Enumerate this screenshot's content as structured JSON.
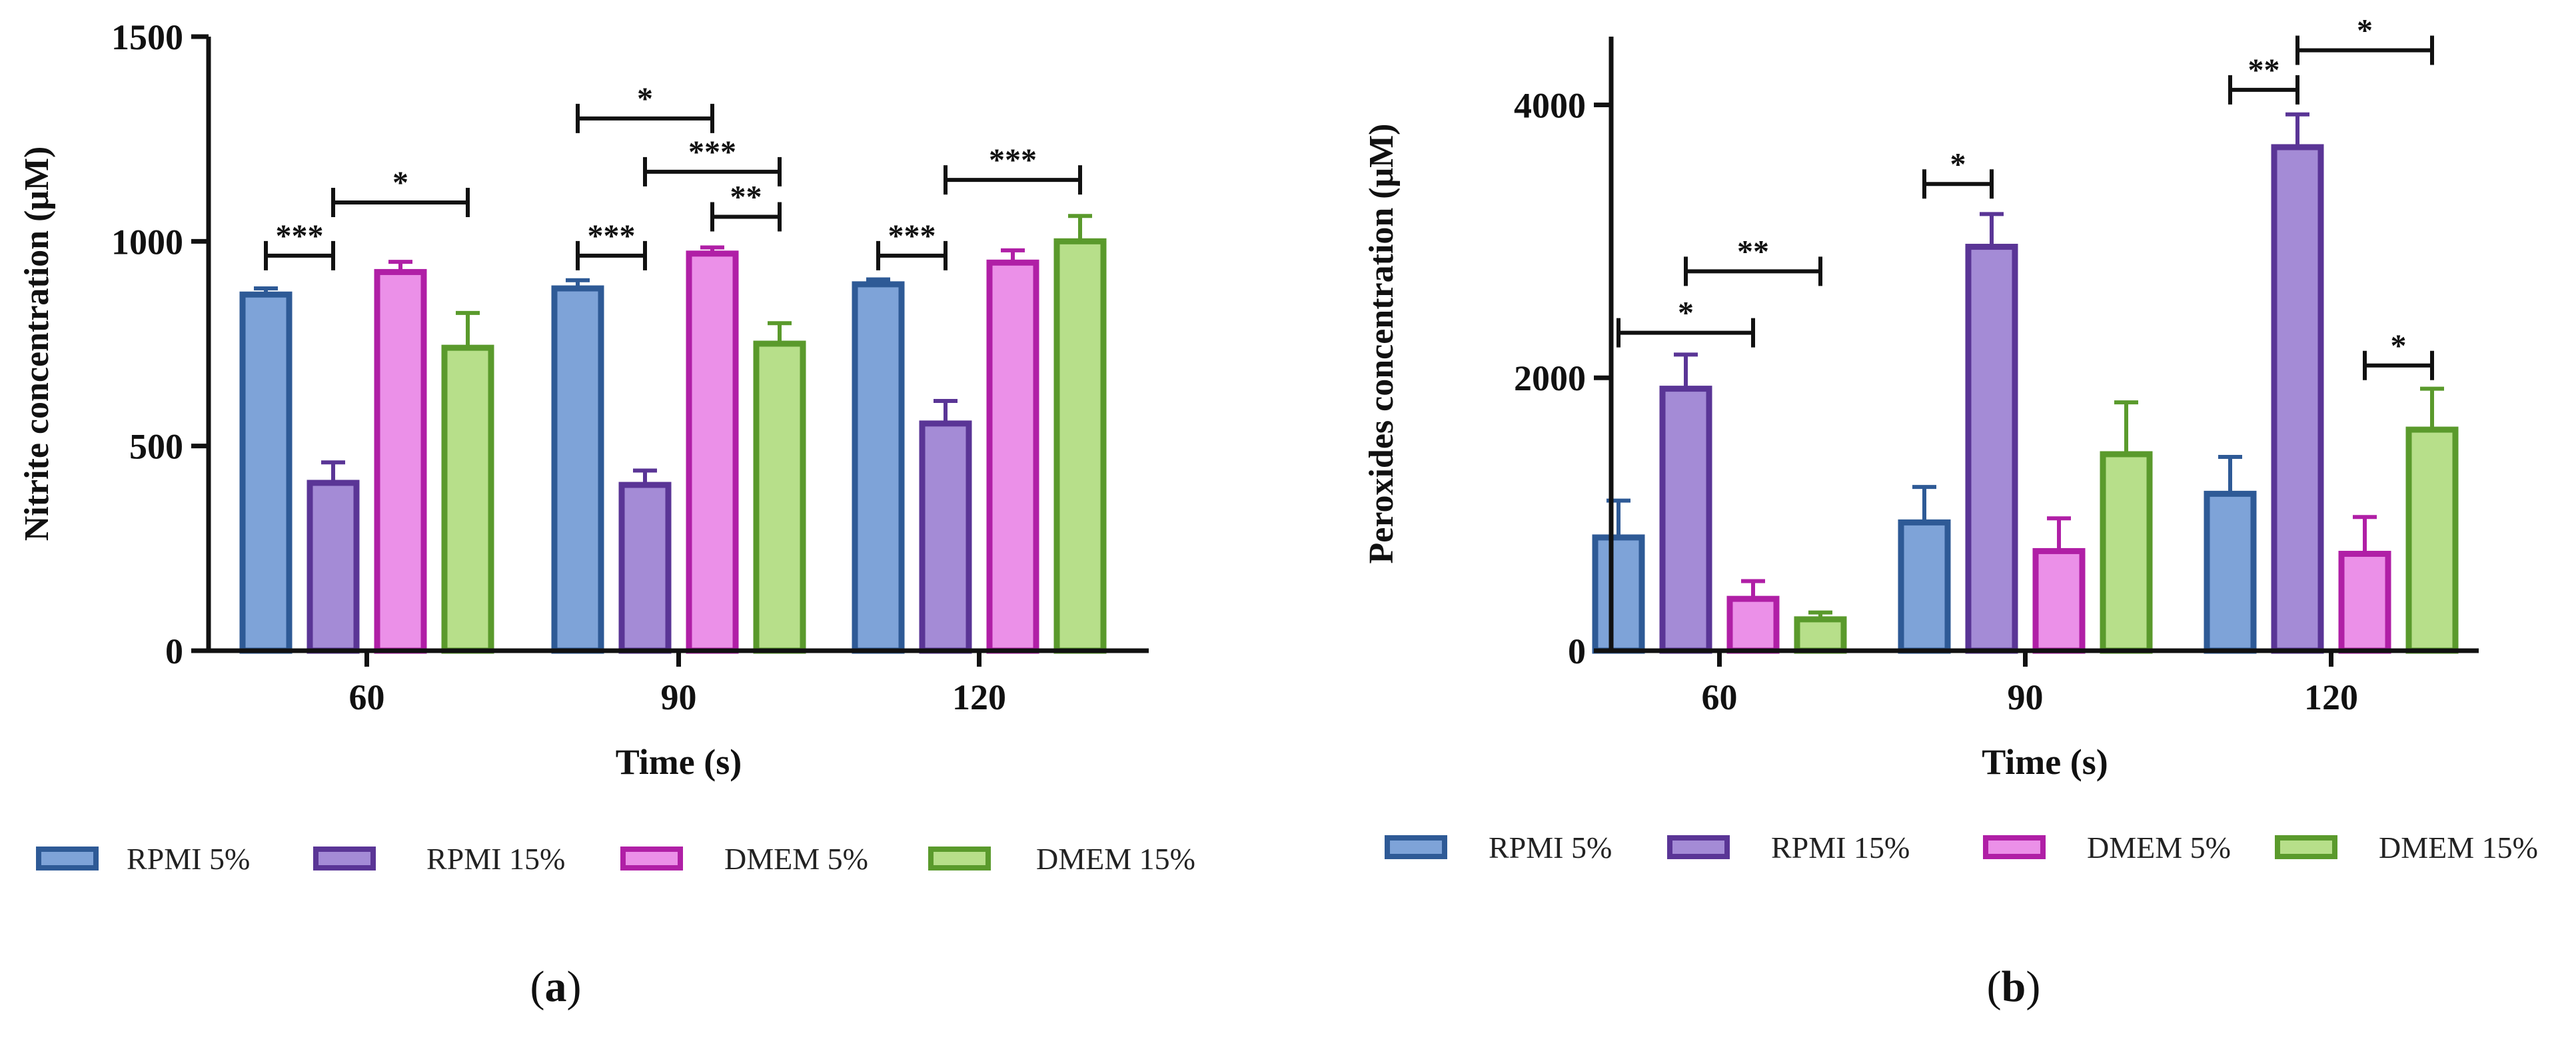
{
  "chart_data": [
    {
      "panel": "a",
      "panel_label_prefix": "(",
      "panel_label_letter": "a",
      "panel_label_suffix": ")",
      "type": "bar",
      "title": "",
      "xlabel": "Time (s)",
      "ylabel": "Nitrite concentration (μM)",
      "categories": [
        "60",
        "90",
        "120"
      ],
      "ylim": [
        0,
        1500
      ],
      "yticks": [
        0,
        500,
        1000,
        1500
      ],
      "series": [
        {
          "name": "RPMI 5%",
          "values": [
            870,
            885,
            895
          ],
          "errors": [
            15,
            20,
            12
          ],
          "fill": "#7ea3d8",
          "stroke": "#2e5a96"
        },
        {
          "name": "RPMI 15%",
          "values": [
            410,
            405,
            555
          ],
          "errors": [
            50,
            35,
            55
          ],
          "fill": "#a48bd6",
          "stroke": "#5a3596"
        },
        {
          "name": "DMEM 5%",
          "values": [
            925,
            970,
            948
          ],
          "errors": [
            25,
            15,
            30
          ],
          "fill": "#eb90e8",
          "stroke": "#b01fa6"
        },
        {
          "name": "DMEM 15%",
          "values": [
            740,
            750,
            1000
          ],
          "errors": [
            85,
            50,
            62
          ],
          "fill": "#b7df8a",
          "stroke": "#5a9a2c"
        }
      ],
      "significance": [
        {
          "group": 0,
          "from": 0,
          "to": 1,
          "y": 965,
          "label": "***"
        },
        {
          "group": 0,
          "from": 1,
          "to": 3,
          "y": 1095,
          "label": "*"
        },
        {
          "group": 1,
          "from": 0,
          "to": 2,
          "y": 1300,
          "label": "*"
        },
        {
          "group": 1,
          "from": 1,
          "to": 3,
          "y": 1170,
          "label": "***"
        },
        {
          "group": 1,
          "from": 2,
          "to": 3,
          "y": 1060,
          "label": "**"
        },
        {
          "group": 1,
          "from": 0,
          "to": 1,
          "y": 965,
          "label": "***"
        },
        {
          "group": 2,
          "from": 0,
          "to": 1,
          "y": 965,
          "label": "***"
        },
        {
          "group": 2,
          "from": 1,
          "to": 3,
          "y": 1150,
          "label": "***"
        }
      ]
    },
    {
      "panel": "b",
      "panel_label_prefix": "(",
      "panel_label_letter": "b",
      "panel_label_suffix": ")",
      "type": "bar",
      "title": "",
      "xlabel": "Time (s)",
      "ylabel": "Peroxides concentration (μM)",
      "categories": [
        "60",
        "90",
        "120"
      ],
      "ylim": [
        0,
        4500
      ],
      "yticks": [
        0,
        2000,
        4000
      ],
      "series": [
        {
          "name": "RPMI 5%",
          "values": [
            830,
            940,
            1150
          ],
          "errors": [
            270,
            260,
            270
          ],
          "fill": "#7ea3d8",
          "stroke": "#2e5a96"
        },
        {
          "name": "RPMI 15%",
          "values": [
            1920,
            2960,
            3690
          ],
          "errors": [
            250,
            240,
            240
          ],
          "fill": "#a48bd6",
          "stroke": "#5a3596"
        },
        {
          "name": "DMEM 5%",
          "values": [
            380,
            730,
            710
          ],
          "errors": [
            130,
            240,
            270
          ],
          "fill": "#eb90e8",
          "stroke": "#b01fa6"
        },
        {
          "name": "DMEM 15%",
          "values": [
            230,
            1440,
            1620
          ],
          "errors": [
            50,
            380,
            300
          ],
          "fill": "#b7df8a",
          "stroke": "#5a9a2c"
        }
      ],
      "significance": [
        {
          "group": 0,
          "from": 0,
          "to": 2,
          "y": 2330,
          "label": "*"
        },
        {
          "group": 0,
          "from": 1,
          "to": 3,
          "y": 2780,
          "label": "**"
        },
        {
          "group": 1,
          "from": 0,
          "to": 1,
          "y": 3420,
          "label": "*"
        },
        {
          "group": 2,
          "from": 0,
          "to": 1,
          "y": 4110,
          "label": "**"
        },
        {
          "group": 2,
          "from": 1,
          "to": 3,
          "y": 4400,
          "label": "*"
        },
        {
          "group": 2,
          "from": 2,
          "to": 3,
          "y": 2090,
          "label": "*"
        }
      ]
    }
  ]
}
